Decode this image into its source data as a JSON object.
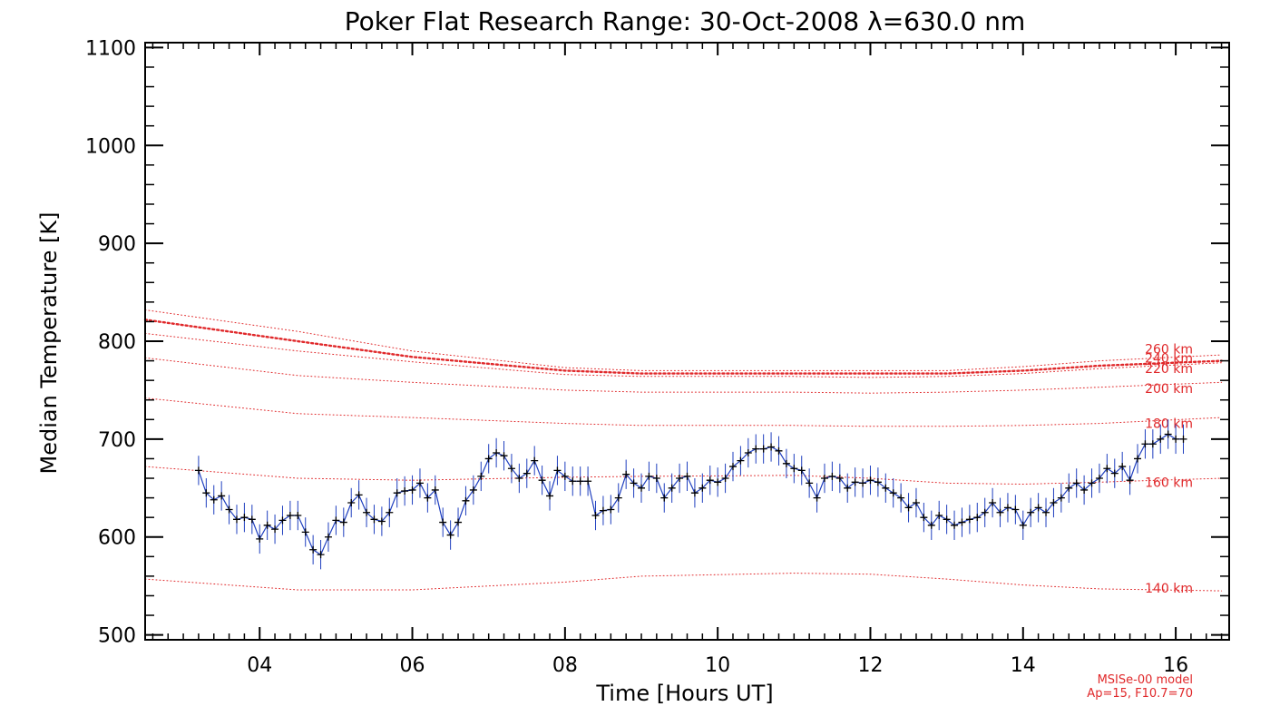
{
  "chart_data": {
    "type": "line",
    "title": "Poker Flat Research Range: 30-Oct-2008 λ=630.0 nm",
    "xlabel": "Time [Hours UT]",
    "ylabel": "Median Temperature [K]",
    "xlim": [
      2.5,
      16.7
    ],
    "ylim": [
      495,
      1105
    ],
    "xticks": [
      4,
      6,
      8,
      10,
      12,
      14,
      16
    ],
    "xtick_labels": [
      "04",
      "06",
      "08",
      "10",
      "12",
      "14",
      "16"
    ],
    "yticks": [
      500,
      600,
      700,
      800,
      900,
      1000,
      1100
    ],
    "ytick_labels": [
      "500",
      "600",
      "700",
      "800",
      "900",
      "1000",
      "1100"
    ],
    "grid": false,
    "measured": {
      "color": "#1f3fbf",
      "marker_color": "#000000",
      "error": 15,
      "points": [
        [
          3.2,
          668
        ],
        [
          3.3,
          645
        ],
        [
          3.4,
          638
        ],
        [
          3.5,
          642
        ],
        [
          3.6,
          628
        ],
        [
          3.7,
          618
        ],
        [
          3.8,
          620
        ],
        [
          3.9,
          618
        ],
        [
          4.0,
          598
        ],
        [
          4.1,
          612
        ],
        [
          4.2,
          608
        ],
        [
          4.3,
          617
        ],
        [
          4.4,
          622
        ],
        [
          4.5,
          622
        ],
        [
          4.6,
          605
        ],
        [
          4.7,
          587
        ],
        [
          4.8,
          582
        ],
        [
          4.9,
          600
        ],
        [
          5.0,
          617
        ],
        [
          5.1,
          615
        ],
        [
          5.2,
          635
        ],
        [
          5.3,
          643
        ],
        [
          5.4,
          625
        ],
        [
          5.5,
          618
        ],
        [
          5.6,
          616
        ],
        [
          5.7,
          625
        ],
        [
          5.8,
          645
        ],
        [
          5.9,
          647
        ],
        [
          6.0,
          648
        ],
        [
          6.1,
          655
        ],
        [
          6.2,
          640
        ],
        [
          6.3,
          648
        ],
        [
          6.4,
          615
        ],
        [
          6.5,
          602
        ],
        [
          6.6,
          615
        ],
        [
          6.7,
          637
        ],
        [
          6.8,
          648
        ],
        [
          6.9,
          662
        ],
        [
          7.0,
          680
        ],
        [
          7.1,
          686
        ],
        [
          7.2,
          683
        ],
        [
          7.3,
          670
        ],
        [
          7.4,
          660
        ],
        [
          7.5,
          665
        ],
        [
          7.6,
          678
        ],
        [
          7.7,
          658
        ],
        [
          7.8,
          642
        ],
        [
          7.9,
          668
        ],
        [
          8.0,
          662
        ],
        [
          8.1,
          657
        ],
        [
          8.2,
          657
        ],
        [
          8.3,
          657
        ],
        [
          8.4,
          622
        ],
        [
          8.5,
          627
        ],
        [
          8.6,
          628
        ],
        [
          8.7,
          640
        ],
        [
          8.8,
          664
        ],
        [
          8.9,
          655
        ],
        [
          9.0,
          650
        ],
        [
          9.1,
          662
        ],
        [
          9.2,
          660
        ],
        [
          9.3,
          640
        ],
        [
          9.4,
          650
        ],
        [
          9.5,
          660
        ],
        [
          9.6,
          662
        ],
        [
          9.7,
          645
        ],
        [
          9.8,
          650
        ],
        [
          9.9,
          658
        ],
        [
          10.0,
          656
        ],
        [
          10.1,
          660
        ],
        [
          10.2,
          672
        ],
        [
          10.3,
          678
        ],
        [
          10.4,
          686
        ],
        [
          10.5,
          690
        ],
        [
          10.6,
          690
        ],
        [
          10.7,
          692
        ],
        [
          10.8,
          688
        ],
        [
          10.9,
          675
        ],
        [
          11.0,
          670
        ],
        [
          11.1,
          668
        ],
        [
          11.2,
          655
        ],
        [
          11.3,
          640
        ],
        [
          11.4,
          660
        ],
        [
          11.5,
          662
        ],
        [
          11.6,
          660
        ],
        [
          11.7,
          650
        ],
        [
          11.8,
          656
        ],
        [
          11.9,
          655
        ],
        [
          12.0,
          658
        ],
        [
          12.1,
          656
        ],
        [
          12.2,
          650
        ],
        [
          12.3,
          645
        ],
        [
          12.4,
          640
        ],
        [
          12.5,
          630
        ],
        [
          12.6,
          635
        ],
        [
          12.7,
          620
        ],
        [
          12.8,
          612
        ],
        [
          12.9,
          622
        ],
        [
          13.0,
          618
        ],
        [
          13.1,
          612
        ],
        [
          13.2,
          615
        ],
        [
          13.3,
          618
        ],
        [
          13.4,
          620
        ],
        [
          13.5,
          625
        ],
        [
          13.6,
          635
        ],
        [
          13.7,
          625
        ],
        [
          13.8,
          630
        ],
        [
          13.9,
          628
        ],
        [
          14.0,
          612
        ],
        [
          14.1,
          625
        ],
        [
          14.2,
          630
        ],
        [
          14.3,
          625
        ],
        [
          14.4,
          635
        ],
        [
          14.5,
          640
        ],
        [
          14.6,
          650
        ],
        [
          14.7,
          655
        ],
        [
          14.8,
          648
        ],
        [
          14.9,
          655
        ],
        [
          15.0,
          660
        ],
        [
          15.1,
          670
        ],
        [
          15.2,
          665
        ],
        [
          15.3,
          672
        ],
        [
          15.4,
          658
        ],
        [
          15.5,
          680
        ],
        [
          15.6,
          695
        ],
        [
          15.7,
          695
        ],
        [
          15.8,
          700
        ],
        [
          15.9,
          705
        ],
        [
          16.0,
          700
        ],
        [
          16.1,
          700
        ]
      ]
    },
    "model_series": [
      {
        "name": "140 km",
        "color": "#e0282a",
        "points": [
          [
            2.5,
            557
          ],
          [
            4.5,
            546
          ],
          [
            6,
            546
          ],
          [
            8,
            554
          ],
          [
            9,
            560
          ],
          [
            11,
            563
          ],
          [
            12,
            562
          ],
          [
            13,
            557
          ],
          [
            14,
            551
          ],
          [
            15,
            547
          ],
          [
            16.6,
            545
          ]
        ]
      },
      {
        "name": "160 km",
        "color": "#e0282a",
        "points": [
          [
            2.5,
            672
          ],
          [
            4.5,
            660
          ],
          [
            6,
            658
          ],
          [
            8,
            661
          ],
          [
            9,
            662
          ],
          [
            11,
            663
          ],
          [
            12,
            660
          ],
          [
            13,
            655
          ],
          [
            14,
            654
          ],
          [
            15,
            656
          ],
          [
            16.6,
            660
          ]
        ]
      },
      {
        "name": "180 km",
        "color": "#e0282a",
        "points": [
          [
            2.5,
            742
          ],
          [
            4.5,
            726
          ],
          [
            6,
            722
          ],
          [
            8,
            716
          ],
          [
            9,
            714
          ],
          [
            11,
            714
          ],
          [
            12,
            713
          ],
          [
            13,
            713
          ],
          [
            14,
            714
          ],
          [
            15,
            716
          ],
          [
            16.6,
            722
          ]
        ]
      },
      {
        "name": "200 km",
        "color": "#e0282a",
        "points": [
          [
            2.5,
            783
          ],
          [
            4.5,
            765
          ],
          [
            6,
            758
          ],
          [
            8,
            750
          ],
          [
            9,
            748
          ],
          [
            11,
            748
          ],
          [
            12,
            747
          ],
          [
            13,
            748
          ],
          [
            14,
            750
          ],
          [
            15,
            753
          ],
          [
            16.6,
            758
          ]
        ]
      },
      {
        "name": "220 km",
        "color": "#e0282a",
        "points": [
          [
            2.5,
            808
          ],
          [
            4.5,
            790
          ],
          [
            6,
            779
          ],
          [
            8,
            766
          ],
          [
            9,
            764
          ],
          [
            11,
            764
          ],
          [
            12,
            763
          ],
          [
            13,
            764
          ],
          [
            14,
            767
          ],
          [
            15,
            772
          ],
          [
            16.6,
            778
          ]
        ]
      },
      {
        "name": "240 km",
        "color": "#e0282a",
        "points": [
          [
            2.5,
            822
          ],
          [
            4.5,
            800
          ],
          [
            6,
            784
          ],
          [
            8,
            770
          ],
          [
            9,
            767
          ],
          [
            11,
            767
          ],
          [
            12,
            767
          ],
          [
            13,
            767
          ],
          [
            14,
            770
          ],
          [
            15,
            775
          ],
          [
            16.6,
            780
          ]
        ]
      },
      {
        "name": "260 km",
        "color": "#e0282a",
        "points": [
          [
            2.5,
            832
          ],
          [
            4.5,
            810
          ],
          [
            6,
            790
          ],
          [
            8,
            773
          ],
          [
            9,
            770
          ],
          [
            11,
            770
          ],
          [
            12,
            770
          ],
          [
            13,
            770
          ],
          [
            14,
            774
          ],
          [
            15,
            780
          ],
          [
            16.6,
            786
          ]
        ]
      }
    ],
    "model_labels": [
      {
        "text": "260 km",
        "y": 792
      },
      {
        "text": "240 km",
        "y": 783
      },
      {
        "text": "220 km",
        "y": 772
      },
      {
        "text": "200 km",
        "y": 752
      },
      {
        "text": "180 km",
        "y": 716
      },
      {
        "text": "160 km",
        "y": 656
      },
      {
        "text": "140 km",
        "y": 548
      }
    ],
    "annotation": [
      "MSISe-00 model",
      "Ap=15, F10.7=70"
    ]
  }
}
